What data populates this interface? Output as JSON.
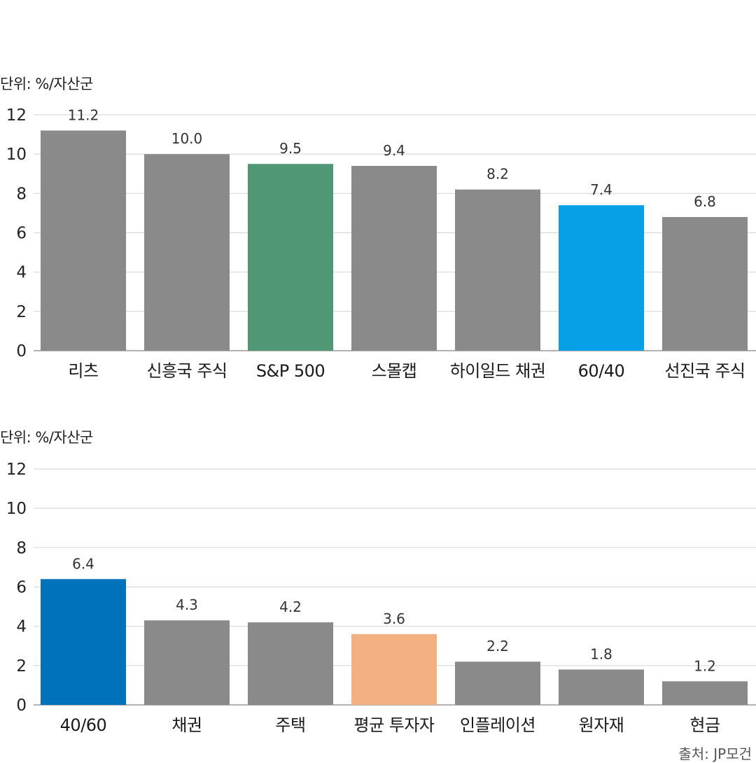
{
  "chart_data": [
    {
      "type": "bar",
      "unit_label": "단위: %/자산군",
      "categories": [
        "리츠",
        "신흥국 주식",
        "S&P 500",
        "스몰캡",
        "하이일드 채권",
        "60/40",
        "선진국 주식"
      ],
      "values": [
        11.2,
        10.0,
        9.5,
        9.4,
        8.2,
        7.4,
        6.8
      ],
      "value_labels": [
        "11.2",
        "10.0",
        "9.5",
        "9.4",
        "8.2",
        "7.4",
        "6.8"
      ],
      "colors": [
        "#8a8a8a",
        "#8a8a8a",
        "#4f9775",
        "#8a8a8a",
        "#8a8a8a",
        "#06a0e6",
        "#8a8a8a"
      ],
      "yticks": [
        0,
        2,
        4,
        6,
        8,
        10,
        12
      ],
      "ylim": [
        0,
        12
      ],
      "grid": true
    },
    {
      "type": "bar",
      "unit_label": "단위: %/자산군",
      "categories": [
        "40/60",
        "채권",
        "주택",
        "평균 투자자",
        "인플레이션",
        "원자재",
        "현금"
      ],
      "values": [
        6.4,
        4.3,
        4.2,
        3.6,
        2.2,
        1.8,
        1.2
      ],
      "value_labels": [
        "6.4",
        "4.3",
        "4.2",
        "3.6",
        "2.2",
        "1.8",
        "1.2"
      ],
      "colors": [
        "#0072bc",
        "#8a8a8a",
        "#8a8a8a",
        "#f3b081",
        "#8a8a8a",
        "#8a8a8a",
        "#8a8a8a"
      ],
      "yticks": [
        0,
        2,
        4,
        6,
        8,
        10,
        12
      ],
      "ylim": [
        0,
        12
      ],
      "grid": true
    }
  ],
  "source_text": "출처: JP모건"
}
